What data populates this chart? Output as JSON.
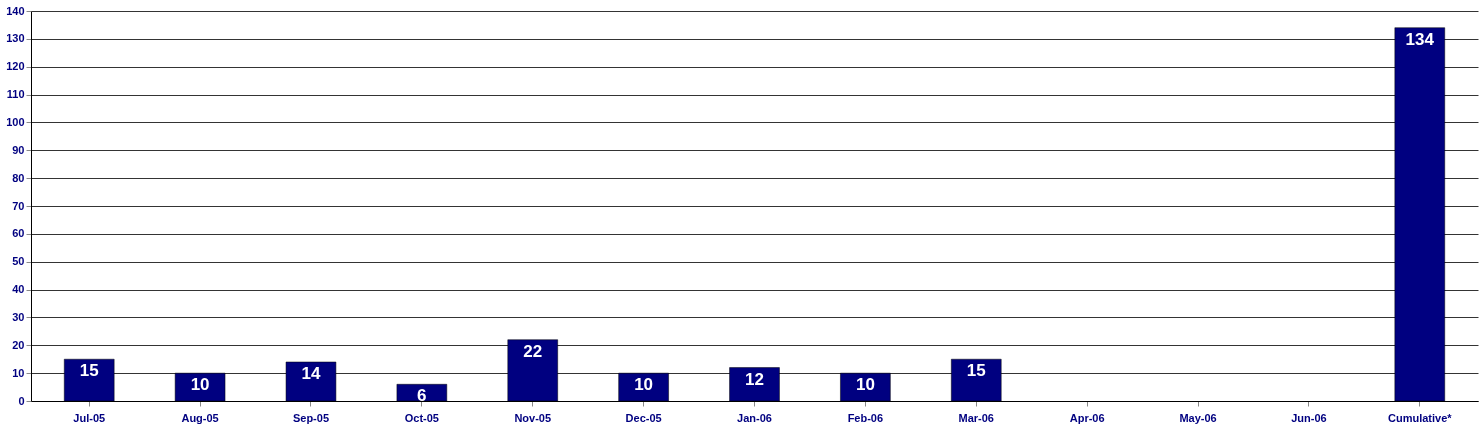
{
  "chart_data": {
    "type": "bar",
    "categories": [
      "Jul-05",
      "Aug-05",
      "Sep-05",
      "Oct-05",
      "Nov-05",
      "Dec-05",
      "Jan-06",
      "Feb-06",
      "Mar-06",
      "Apr-06",
      "May-06",
      "Jun-06",
      "Cumulative*"
    ],
    "values": [
      15,
      10,
      14,
      6,
      22,
      10,
      12,
      10,
      15,
      null,
      null,
      null,
      134
    ],
    "color": "#000080",
    "ylim": [
      0,
      140
    ],
    "yticks": [
      0,
      10,
      20,
      30,
      40,
      50,
      60,
      70,
      80,
      90,
      100,
      110,
      120,
      130,
      140
    ],
    "grid": "y",
    "data_labels": true
  }
}
